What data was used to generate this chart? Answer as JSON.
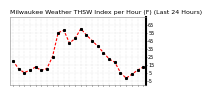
{
  "title": "Milwaukee Weather THSW Index per Hour (F) (Last 24 Hours)",
  "title_fontsize": 4.5,
  "title_color": "#000000",
  "bg_color": "#ffffff",
  "plot_bg_color": "#ffffff",
  "line_color": "#ff0000",
  "marker_color": "#000000",
  "ytick_fontsize": 3.5,
  "xtick_fontsize": 3.0,
  "ylim": [
    -10,
    75
  ],
  "yticks": [
    -5,
    5,
    15,
    25,
    35,
    45,
    55,
    65
  ],
  "ytick_labels": [
    "-5",
    "5",
    "15",
    "25",
    "35",
    "45",
    "55",
    "65"
  ],
  "hours": [
    0,
    1,
    2,
    3,
    4,
    5,
    6,
    7,
    8,
    9,
    10,
    11,
    12,
    13,
    14,
    15,
    16,
    17,
    18,
    19,
    20,
    21,
    22,
    23
  ],
  "values": [
    20,
    10,
    5,
    8,
    12,
    8,
    10,
    25,
    55,
    58,
    42,
    48,
    60,
    52,
    45,
    38,
    30,
    22,
    18,
    5,
    -2,
    3,
    8,
    12
  ],
  "grid_color": "#cccccc",
  "grid_linestyle": "dotted"
}
